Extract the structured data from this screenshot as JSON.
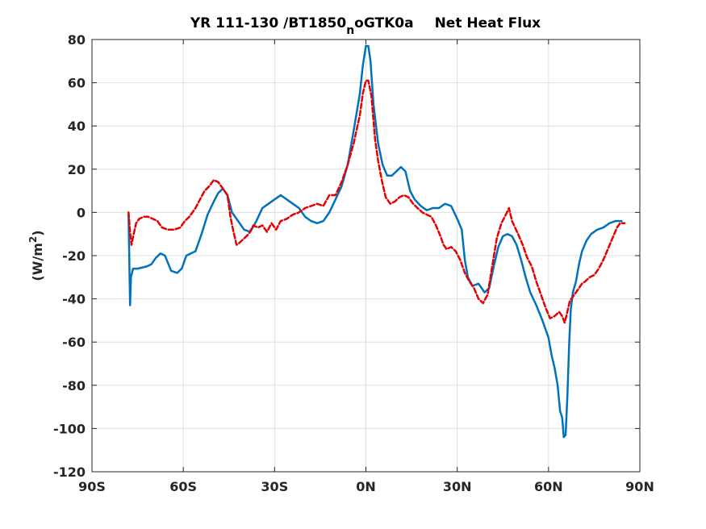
{
  "chart_data": {
    "type": "line",
    "title_parts": {
      "main": "YR 111-130 /BT1850",
      "subscript": "n",
      "after": "oGTK0a",
      "suffix": "Net Heat Flux"
    },
    "xlabel": "",
    "ylabel_parts": {
      "main": "(W/m",
      "superscript": "2",
      "after": ")"
    },
    "xlim": [
      -90,
      90
    ],
    "ylim": [
      -120,
      80
    ],
    "grid": true,
    "legend": "none",
    "x_ticks": [
      -90,
      -60,
      -30,
      0,
      30,
      60,
      90
    ],
    "x_tick_labels": [
      "90S",
      "60S",
      "30S",
      "0N",
      "30N",
      "60N",
      "90N"
    ],
    "y_ticks": [
      -120,
      -100,
      -80,
      -60,
      -40,
      -20,
      0,
      20,
      40,
      60,
      80
    ],
    "y_tick_labels": [
      "-120",
      "-100",
      "-80",
      "-60",
      "-40",
      "-20",
      "0",
      "20",
      "40",
      "60",
      "80"
    ],
    "series": [
      {
        "color": "#0072BD",
        "style": "solid",
        "points": [
          [
            -78,
            -1
          ],
          [
            -77.8,
            -16
          ],
          [
            -77.5,
            -43
          ],
          [
            -77.2,
            -30
          ],
          [
            -76.5,
            -26
          ],
          [
            -75,
            -26
          ],
          [
            -72,
            -25
          ],
          [
            -70.5,
            -24
          ],
          [
            -69,
            -21
          ],
          [
            -67.5,
            -19
          ],
          [
            -66,
            -20
          ],
          [
            -64,
            -27
          ],
          [
            -62,
            -28
          ],
          [
            -60.5,
            -26
          ],
          [
            -59,
            -20
          ],
          [
            -57.5,
            -19
          ],
          [
            -56,
            -18
          ],
          [
            -54,
            -10
          ],
          [
            -52,
            -1
          ],
          [
            -50,
            5
          ],
          [
            -48.5,
            9
          ],
          [
            -47,
            11
          ],
          [
            -45.5,
            8
          ],
          [
            -44,
            0
          ],
          [
            -42,
            -4
          ],
          [
            -40,
            -8
          ],
          [
            -38,
            -9
          ],
          [
            -36,
            -4
          ],
          [
            -34,
            2
          ],
          [
            -32,
            4
          ],
          [
            -30,
            6
          ],
          [
            -28,
            8
          ],
          [
            -26,
            6
          ],
          [
            -24,
            4
          ],
          [
            -22,
            2
          ],
          [
            -20,
            -2
          ],
          [
            -18,
            -4
          ],
          [
            -16,
            -5
          ],
          [
            -14,
            -4
          ],
          [
            -12,
            0
          ],
          [
            -10,
            6
          ],
          [
            -8,
            12
          ],
          [
            -6,
            22
          ],
          [
            -4,
            38
          ],
          [
            -2,
            55
          ],
          [
            -1,
            68
          ],
          [
            0,
            77
          ],
          [
            0.8,
            77
          ],
          [
            1.5,
            70
          ],
          [
            2.5,
            50
          ],
          [
            4,
            32
          ],
          [
            5.5,
            22
          ],
          [
            7,
            17
          ],
          [
            8.5,
            17
          ],
          [
            10,
            19
          ],
          [
            11.5,
            21
          ],
          [
            13,
            19
          ],
          [
            14.5,
            10
          ],
          [
            16,
            6
          ],
          [
            18,
            3
          ],
          [
            20,
            1
          ],
          [
            22,
            2
          ],
          [
            24,
            2
          ],
          [
            26,
            4
          ],
          [
            28,
            3
          ],
          [
            30,
            -3
          ],
          [
            31.5,
            -8
          ],
          [
            32.5,
            -22
          ],
          [
            33.5,
            -30
          ],
          [
            35,
            -34
          ],
          [
            37,
            -33
          ],
          [
            39,
            -37
          ],
          [
            40.5,
            -35
          ],
          [
            42,
            -25
          ],
          [
            43.5,
            -16
          ],
          [
            45,
            -11
          ],
          [
            46.5,
            -10
          ],
          [
            48,
            -11
          ],
          [
            49.5,
            -15
          ],
          [
            51,
            -22
          ],
          [
            52.5,
            -30
          ],
          [
            54,
            -37
          ],
          [
            56,
            -43
          ],
          [
            58,
            -50
          ],
          [
            60,
            -58
          ],
          [
            61,
            -66
          ],
          [
            62,
            -72
          ],
          [
            63,
            -80
          ],
          [
            63.8,
            -92
          ],
          [
            64.5,
            -95
          ],
          [
            65,
            -104
          ],
          [
            65.6,
            -103
          ],
          [
            66.2,
            -85
          ],
          [
            66.8,
            -60
          ],
          [
            67.3,
            -45
          ],
          [
            68,
            -37
          ],
          [
            69,
            -32
          ],
          [
            70,
            -24
          ],
          [
            71,
            -18
          ],
          [
            72.5,
            -13
          ],
          [
            74,
            -10
          ],
          [
            76,
            -8
          ],
          [
            78,
            -7
          ],
          [
            80,
            -5
          ],
          [
            82,
            -4
          ],
          [
            84,
            -4
          ]
        ]
      },
      {
        "color": "#E60000",
        "style": "dashed",
        "points": [
          [
            -78,
            0
          ],
          [
            -77.5,
            -9
          ],
          [
            -77,
            -15
          ],
          [
            -76.3,
            -10
          ],
          [
            -75.5,
            -5
          ],
          [
            -74.5,
            -3
          ],
          [
            -73,
            -2
          ],
          [
            -71.5,
            -2
          ],
          [
            -70,
            -3
          ],
          [
            -68.5,
            -4
          ],
          [
            -67,
            -7
          ],
          [
            -65,
            -8
          ],
          [
            -63,
            -8
          ],
          [
            -61,
            -7
          ],
          [
            -59.5,
            -4
          ],
          [
            -58,
            -2
          ],
          [
            -56,
            2
          ],
          [
            -54.5,
            6
          ],
          [
            -53,
            10
          ],
          [
            -51.5,
            12
          ],
          [
            -50,
            15
          ],
          [
            -48.5,
            14
          ],
          [
            -47,
            11
          ],
          [
            -45.5,
            8
          ],
          [
            -44.5,
            -2
          ],
          [
            -43.5,
            -9
          ],
          [
            -42.5,
            -15
          ],
          [
            -41.5,
            -14
          ],
          [
            -40,
            -12
          ],
          [
            -38.5,
            -10
          ],
          [
            -37,
            -6
          ],
          [
            -35.5,
            -7
          ],
          [
            -34,
            -6
          ],
          [
            -32.5,
            -9
          ],
          [
            -31,
            -5
          ],
          [
            -29.5,
            -8
          ],
          [
            -28,
            -4
          ],
          [
            -26,
            -3
          ],
          [
            -24,
            -1
          ],
          [
            -22,
            0
          ],
          [
            -20,
            2
          ],
          [
            -18,
            3
          ],
          [
            -16,
            4
          ],
          [
            -14,
            3
          ],
          [
            -12,
            8
          ],
          [
            -10,
            8
          ],
          [
            -8,
            14
          ],
          [
            -6,
            22
          ],
          [
            -4,
            32
          ],
          [
            -2,
            45
          ],
          [
            -1,
            55
          ],
          [
            0,
            61
          ],
          [
            0.8,
            61
          ],
          [
            1.8,
            54
          ],
          [
            3,
            34
          ],
          [
            4,
            24
          ],
          [
            5.2,
            15
          ],
          [
            6.5,
            7
          ],
          [
            8,
            4
          ],
          [
            9.5,
            5
          ],
          [
            11,
            7
          ],
          [
            12.5,
            8
          ],
          [
            14,
            7
          ],
          [
            15.5,
            4
          ],
          [
            17,
            2
          ],
          [
            18.5,
            0
          ],
          [
            20,
            -1
          ],
          [
            21.5,
            -2
          ],
          [
            23,
            -6
          ],
          [
            24.5,
            -11
          ],
          [
            25.5,
            -15
          ],
          [
            26.5,
            -17
          ],
          [
            28,
            -16
          ],
          [
            29.5,
            -18
          ],
          [
            31,
            -22
          ],
          [
            32.5,
            -28
          ],
          [
            34,
            -32
          ],
          [
            35.5,
            -35
          ],
          [
            37,
            -40
          ],
          [
            38.5,
            -42
          ],
          [
            40,
            -38
          ],
          [
            41.5,
            -25
          ],
          [
            43,
            -12
          ],
          [
            44.5,
            -5
          ],
          [
            46,
            -1
          ],
          [
            47,
            2
          ],
          [
            48,
            -4
          ],
          [
            50,
            -10
          ],
          [
            51.5,
            -15
          ],
          [
            53,
            -21
          ],
          [
            54.5,
            -25
          ],
          [
            56,
            -32
          ],
          [
            57.5,
            -38
          ],
          [
            59,
            -44
          ],
          [
            60.5,
            -49
          ],
          [
            62,
            -48
          ],
          [
            63.5,
            -46
          ],
          [
            64.5,
            -48
          ],
          [
            65.3,
            -51
          ],
          [
            66,
            -47
          ],
          [
            67,
            -41
          ],
          [
            68,
            -39
          ],
          [
            69,
            -37
          ],
          [
            70,
            -35
          ],
          [
            71,
            -33
          ],
          [
            72,
            -32
          ],
          [
            73.5,
            -30
          ],
          [
            75,
            -29
          ],
          [
            76.5,
            -26
          ],
          [
            78,
            -22
          ],
          [
            79.5,
            -17
          ],
          [
            81,
            -12
          ],
          [
            82.5,
            -7
          ],
          [
            83.5,
            -5
          ],
          [
            85,
            -5
          ]
        ]
      }
    ]
  }
}
